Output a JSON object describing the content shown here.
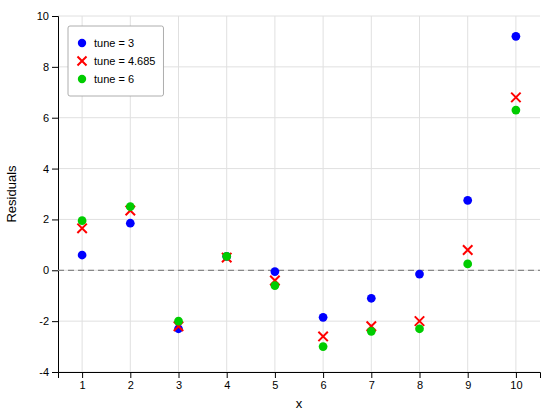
{
  "chart_data": {
    "type": "scatter",
    "x": [
      1,
      2,
      3,
      4,
      5,
      6,
      7,
      8,
      9,
      10
    ],
    "series": [
      {
        "name": "tune = 3",
        "color": "#0000ff",
        "marker": "circle",
        "values": [
          0.6,
          1.85,
          -2.3,
          0.55,
          -0.05,
          -1.85,
          -1.1,
          -0.15,
          2.75,
          9.2
        ]
      },
      {
        "name": "tune = 4.685",
        "color": "#ff0000",
        "marker": "x",
        "values": [
          1.65,
          2.35,
          -2.2,
          0.5,
          -0.4,
          -2.6,
          -2.2,
          -2.0,
          0.8,
          6.8
        ]
      },
      {
        "name": "tune = 6",
        "color": "#00cc00",
        "marker": "circle",
        "values": [
          1.95,
          2.5,
          -2.0,
          0.55,
          -0.6,
          -3.0,
          -2.4,
          -2.3,
          0.25,
          6.3
        ]
      }
    ],
    "hline": {
      "value": 0,
      "color": "#888888",
      "line_style": "dashed"
    },
    "xlabel": "x",
    "ylabel": "Residuals",
    "xlim": [
      0.5,
      10.5
    ],
    "ylim": [
      -4,
      10
    ],
    "xticks": [
      1,
      2,
      3,
      4,
      5,
      6,
      7,
      8,
      9,
      10
    ],
    "yticks": [
      -4,
      -2,
      0,
      2,
      4,
      6,
      8,
      10
    ],
    "grid": true,
    "legend": "upper left"
  }
}
